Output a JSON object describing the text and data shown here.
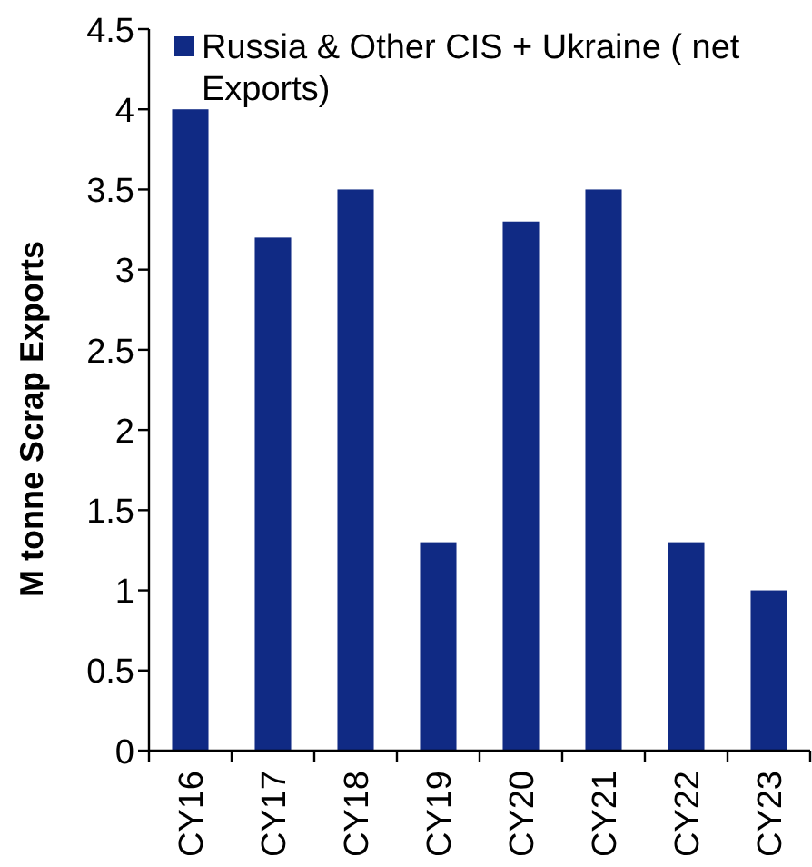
{
  "chart_data": {
    "type": "bar",
    "ylabel": "M tonne Scrap Exports",
    "categories": [
      "CY16",
      "CY17",
      "CY18",
      "CY19",
      "CY20",
      "CY21",
      "CY22",
      "CY23"
    ],
    "series": [
      {
        "name": "Russia & Other CIS + Ukraine ( net Exports)",
        "color": "#102a84",
        "values": [
          4,
          3.2,
          3.5,
          1.3,
          3.3,
          3.5,
          1.3,
          1
        ]
      }
    ],
    "ylim": [
      0,
      4.5
    ],
    "yticks": [
      0,
      0.5,
      1,
      1.5,
      2,
      2.5,
      3,
      3.5,
      4,
      4.5
    ],
    "legend": "top left"
  }
}
